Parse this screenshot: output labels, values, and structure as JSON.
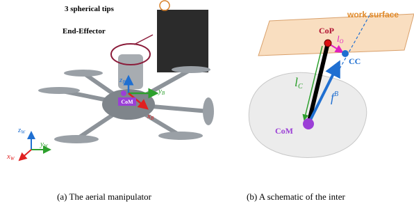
{
  "panel_a": {
    "annotations": [
      "3 spherical tips",
      "End-Effector"
    ],
    "body_frame": [
      {
        "axis": "z",
        "sub": "B"
      },
      {
        "axis": "y",
        "sub": "B"
      },
      {
        "axis": "x",
        "sub": "B"
      }
    ],
    "com_label": "CoM",
    "world_frame": [
      {
        "axis": "z",
        "sub": "W"
      },
      {
        "axis": "y",
        "sub": "W"
      },
      {
        "axis": "x",
        "sub": "W"
      }
    ],
    "caption": "(a) The aerial manipulator"
  },
  "panel_b": {
    "surface_label": "work surface",
    "cop_label": "CoP",
    "cc_label": "CC",
    "lo_label": {
      "base": "l",
      "sub": "O"
    },
    "lc_label": {
      "base": "l",
      "sub": "C"
    },
    "f_label": {
      "base": "f",
      "sup": "B"
    },
    "com_label": "CoM",
    "caption": "(b) A schematic of the inter"
  }
}
